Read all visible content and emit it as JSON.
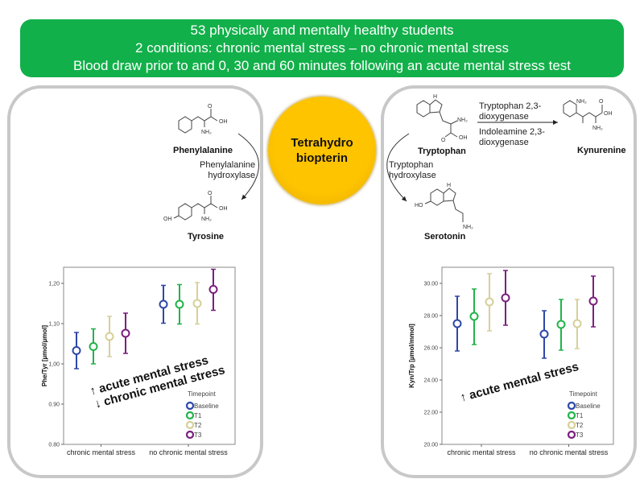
{
  "header": {
    "lines": [
      "53 physically and mentally healthy students",
      "2 conditions: chronic mental stress – no chronic mental stress",
      "Blood draw prior to and 0, 30 and 60 minutes following an acute mental stress test"
    ],
    "color": "#12b04a"
  },
  "center": {
    "line1": "Tetrahydro",
    "line2": "biopterin",
    "color": "#ffc400"
  },
  "left_pathway": {
    "substrate": "Phenylalanine",
    "enzyme_line1": "Phenylalanine",
    "enzyme_line2": "hydroxylase",
    "product": "Tyrosine"
  },
  "right_pathway": {
    "substrate": "Tryptophan",
    "enzyme_line1": "Tryptophan",
    "enzyme_line2": "hydroxylase",
    "product": "Serotonin",
    "enzyme2_line1": "Tryptophan 2,3-",
    "enzyme2_line2": "dioxygenase",
    "enzyme3_line1": "Indoleamine 2,3-",
    "enzyme3_line2": "dioxygenase",
    "product2": "Kynurenine"
  },
  "atoms": {
    "oh": "OH",
    "nh2": "NH₂",
    "ho": "HO",
    "h": "H",
    "n": "N",
    "o": "O"
  },
  "chart_data": [
    {
      "type": "scatter",
      "subtype": "error-bar",
      "ylabel": "Phe/Tyr [µmol/µmol]",
      "ylim": [
        0.8,
        1.24
      ],
      "yticks": [
        0.8,
        0.9,
        1.0,
        1.1,
        1.2
      ],
      "ytick_labels": [
        "0.80",
        "0.90",
        "1,00",
        "1,10",
        "1,20"
      ],
      "categories": [
        "chronic mental stress",
        "no chronic mental stress"
      ],
      "legend_title": "Timepoint",
      "legend_placement": "bottom-right",
      "series": [
        {
          "name": "Baseline",
          "color": "#2e47a8",
          "values": [
            1.033,
            1.148
          ],
          "lower": [
            0.988,
            1.101
          ],
          "upper": [
            1.078,
            1.195
          ]
        },
        {
          "name": "T1",
          "color": "#22b34a",
          "values": [
            1.043,
            1.148
          ],
          "lower": [
            1.0,
            1.099
          ],
          "upper": [
            1.087,
            1.197
          ]
        },
        {
          "name": "T2",
          "color": "#d6cf98",
          "values": [
            1.068,
            1.15
          ],
          "lower": [
            1.018,
            1.099
          ],
          "upper": [
            1.118,
            1.202
          ]
        },
        {
          "name": "T3",
          "color": "#7a1f7e",
          "values": [
            1.076,
            1.185
          ],
          "lower": [
            1.026,
            1.133
          ],
          "upper": [
            1.126,
            1.235
          ]
        }
      ],
      "annotations": [
        "↑ acute mental stress",
        "↓ chronic mental stress"
      ]
    },
    {
      "type": "scatter",
      "subtype": "error-bar",
      "ylabel": "Kyn/Trp [µmol/mmol]",
      "ylim": [
        20,
        31
      ],
      "yticks": [
        20,
        22,
        24,
        26,
        28,
        30
      ],
      "ytick_labels": [
        "20.00",
        "22.00",
        "24.00",
        "26.00",
        "28.00",
        "30.00"
      ],
      "categories": [
        "chronic mental stress",
        "no chronic mental stress"
      ],
      "legend_title": "Timepoint",
      "legend_placement": "bottom-right",
      "series": [
        {
          "name": "Baseline",
          "color": "#2e47a8",
          "values": [
            27.5,
            26.85
          ],
          "lower": [
            25.8,
            25.35
          ],
          "upper": [
            29.2,
            28.3
          ]
        },
        {
          "name": "T1",
          "color": "#22b34a",
          "values": [
            27.95,
            27.45
          ],
          "lower": [
            26.2,
            25.85
          ],
          "upper": [
            29.65,
            29.0
          ]
        },
        {
          "name": "T2",
          "color": "#d6cf98",
          "values": [
            28.85,
            27.5
          ],
          "lower": [
            27.05,
            25.95
          ],
          "upper": [
            30.6,
            29.0
          ]
        },
        {
          "name": "T3",
          "color": "#7a1f7e",
          "values": [
            29.1,
            28.9
          ],
          "lower": [
            27.4,
            27.3
          ],
          "upper": [
            30.8,
            30.45
          ]
        }
      ],
      "annotations": [
        "↑ acute mental stress"
      ]
    }
  ]
}
